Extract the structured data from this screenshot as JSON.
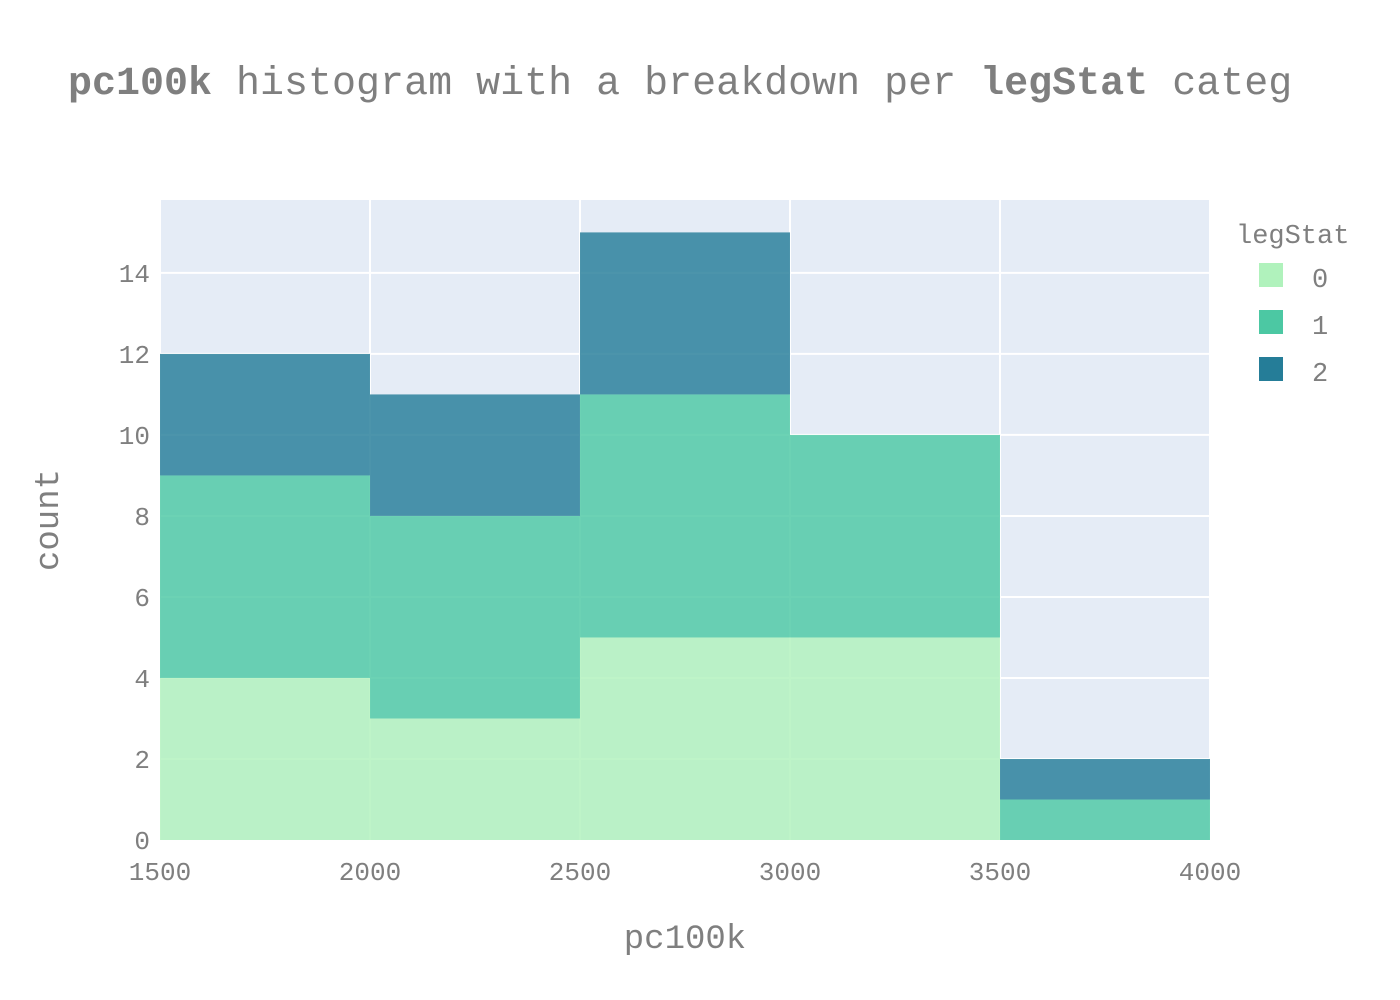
{
  "chart_data": {
    "type": "bar",
    "mode": "stacked-histogram",
    "title_parts": [
      {
        "text": "pc100k",
        "bold": true
      },
      {
        "text": " histogram with a breakdown per ",
        "bold": false
      },
      {
        "text": "legStat",
        "bold": true
      },
      {
        "text": " categ",
        "bold": false
      }
    ],
    "xlabel": "pc100k",
    "ylabel": "count",
    "xlim": [
      1500,
      4000
    ],
    "ylim": [
      0,
      15.8
    ],
    "x_ticks": [
      "1500",
      "2000",
      "2500",
      "3000",
      "3500",
      "4000"
    ],
    "y_ticks": [
      "0",
      "2",
      "4",
      "6",
      "8",
      "10",
      "12",
      "14"
    ],
    "y_tick_values": [
      0,
      2,
      4,
      6,
      8,
      10,
      12,
      14
    ],
    "x_tick_values": [
      1500,
      2000,
      2500,
      3000,
      3500,
      4000
    ],
    "bins": [
      [
        1500,
        2000
      ],
      [
        2000,
        2500
      ],
      [
        2500,
        3000
      ],
      [
        3000,
        3500
      ],
      [
        3500,
        4000
      ]
    ],
    "legend_title": "legStat",
    "legend_position": "top-right",
    "grid": true,
    "plot_bg": "#e5ecf6",
    "series": [
      {
        "name": "0",
        "color": "#b0f2bc",
        "values": [
          4,
          3,
          5,
          5,
          0
        ]
      },
      {
        "name": "1",
        "color": "#4cc8a3",
        "values": [
          5,
          5,
          6,
          5,
          1
        ]
      },
      {
        "name": "2",
        "color": "#257d98",
        "values": [
          3,
          3,
          4,
          0,
          1
        ]
      }
    ]
  }
}
